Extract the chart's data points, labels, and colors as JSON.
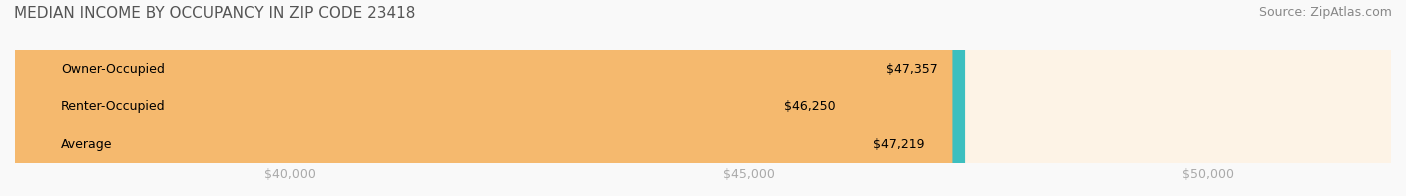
{
  "title": "MEDIAN INCOME BY OCCUPANCY IN ZIP CODE 23418",
  "source": "Source: ZipAtlas.com",
  "categories": [
    "Owner-Occupied",
    "Renter-Occupied",
    "Average"
  ],
  "values": [
    47357,
    46250,
    47219
  ],
  "labels": [
    "$47,357",
    "$46,250",
    "$47,219"
  ],
  "bar_colors": [
    "#3dbfbf",
    "#c9aed6",
    "#f5b96e"
  ],
  "bar_bg_colors": [
    "#e8f7f7",
    "#f0ecf5",
    "#fdf3e6"
  ],
  "xlim": [
    37000,
    52000
  ],
  "xticks": [
    40000,
    45000,
    50000
  ],
  "xtick_labels": [
    "$40,000",
    "$45,000",
    "$50,000"
  ],
  "background_color": "#f9f9f9",
  "title_fontsize": 11,
  "source_fontsize": 9,
  "label_fontsize": 9,
  "tick_fontsize": 9
}
